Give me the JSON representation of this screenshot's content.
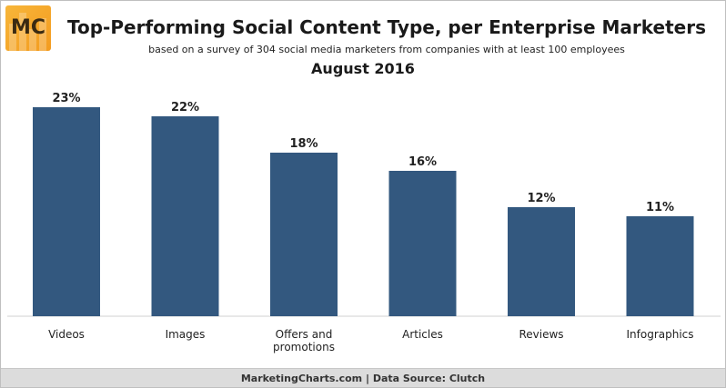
{
  "logo": {
    "text": "MC"
  },
  "title": "Top-Performing Social Content Type, per Enterprise Marketers",
  "subtitle": "based on a survey of 304 social media marketers from companies with at least 100 employees",
  "date": "August 2016",
  "footer": "MarketingCharts.com | Data Source: Clutch",
  "colors": {
    "bar": "#33587f",
    "logo": "#f39b1f"
  },
  "chart_data": {
    "type": "bar",
    "categories": [
      [
        "Videos"
      ],
      [
        "Images"
      ],
      [
        "Offers and",
        "promotions"
      ],
      [
        "Articles"
      ],
      [
        "Reviews"
      ],
      [
        "Infographics"
      ]
    ],
    "values": [
      23,
      22,
      18,
      16,
      12,
      11
    ],
    "labels": [
      "23%",
      "22%",
      "18%",
      "16%",
      "12%",
      "11%"
    ],
    "title": "Top-Performing Social Content Type, per Enterprise Marketers",
    "xlabel": "",
    "ylabel": "",
    "ylim": [
      0,
      25
    ],
    "grid": false,
    "legend": "none"
  }
}
